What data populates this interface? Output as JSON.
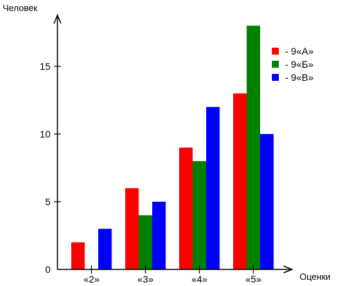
{
  "chart_data": {
    "type": "bar",
    "ylabel": "Человек",
    "xlabel": "Оценки",
    "categories": [
      "«2»",
      "«3»",
      "«4»",
      "«5»"
    ],
    "series": [
      {
        "name": "- 9«А»",
        "color": "#ff0000",
        "values": [
          2,
          6,
          9,
          13
        ]
      },
      {
        "name": "- 9«Б»",
        "color": "#008000",
        "values": [
          0,
          4,
          8,
          18
        ]
      },
      {
        "name": "- 9«В»",
        "color": "#0000ff",
        "values": [
          3,
          5,
          12,
          10
        ]
      }
    ],
    "yticks": [
      0,
      5,
      10,
      15
    ],
    "ylim": [
      0,
      18
    ],
    "grid": false,
    "legend": "top-right"
  }
}
